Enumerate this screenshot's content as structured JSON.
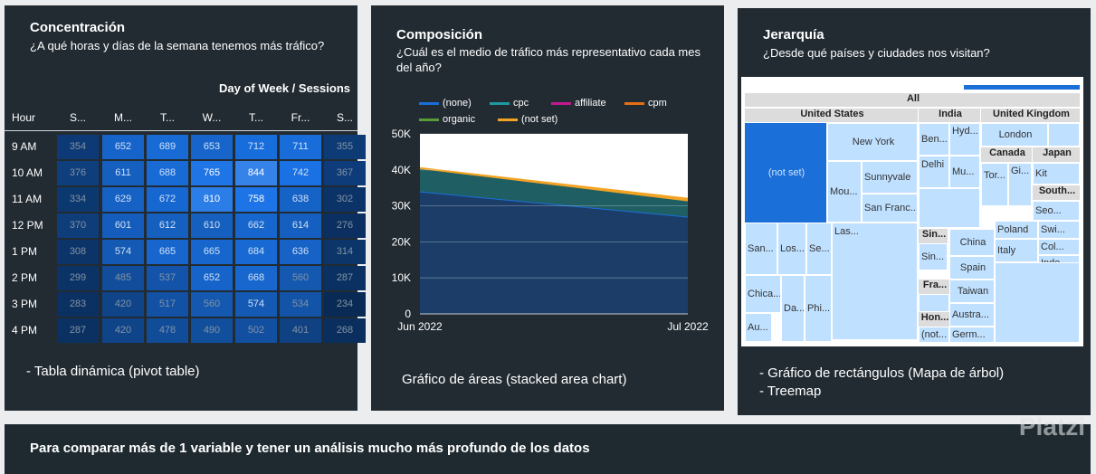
{
  "panel1": {
    "title": "Concentración",
    "subtitle": "¿A qué horas y días de la semana tenemos más tráfico?",
    "caption": "- Tabla dinámica (pivot table)",
    "pivot": {
      "header": "Day of Week / Sessions",
      "row_label": "Hour",
      "columns": [
        "S...",
        "M...",
        "T...",
        "W...",
        "T...",
        "Fr...",
        "S..."
      ],
      "rows": [
        {
          "hour": "9 AM",
          "values": [
            354,
            652,
            689,
            653,
            712,
            711,
            355
          ]
        },
        {
          "hour": "10 AM",
          "values": [
            376,
            611,
            688,
            765,
            844,
            742,
            367
          ]
        },
        {
          "hour": "11 AM",
          "values": [
            334,
            629,
            672,
            810,
            758,
            638,
            302
          ]
        },
        {
          "hour": "12 PM",
          "values": [
            370,
            601,
            612,
            610,
            662,
            614,
            276
          ]
        },
        {
          "hour": "1 PM",
          "values": [
            308,
            574,
            665,
            665,
            684,
            636,
            314
          ]
        },
        {
          "hour": "2 PM",
          "values": [
            299,
            485,
            537,
            652,
            668,
            560,
            287
          ]
        },
        {
          "hour": "3 PM",
          "values": [
            283,
            420,
            517,
            560,
            574,
            534,
            234
          ]
        },
        {
          "hour": "4 PM",
          "values": [
            287,
            420,
            478,
            490,
            502,
            401,
            268
          ]
        }
      ]
    }
  },
  "panel2": {
    "title": "Composición",
    "subtitle": "¿Cuál es el medio de tráfico más representativo cada mes del año?",
    "caption": "Gráfico de áreas (stacked area chart)"
  },
  "chart_data": {
    "type": "area",
    "title": "",
    "categories": [
      "Jun 2022",
      "Jul 2022"
    ],
    "series": [
      {
        "name": "(none)",
        "color": "#1a6fd8",
        "values": [
          34000,
          27000
        ]
      },
      {
        "name": "cpc",
        "color": "#1f9aa3",
        "values": [
          6500,
          4500
        ]
      },
      {
        "name": "affiliate",
        "color": "#c2188f",
        "values": [
          0,
          0
        ]
      },
      {
        "name": "cpm",
        "color": "#e56f13",
        "values": [
          0,
          0
        ]
      },
      {
        "name": "organic",
        "color": "#5a9a39",
        "values": [
          0,
          0
        ]
      },
      {
        "name": "(not set)",
        "color": "#f2a324",
        "values": [
          0,
          500
        ]
      }
    ],
    "yticks": [
      "0",
      "10K",
      "20K",
      "30K",
      "40K",
      "50K"
    ],
    "ylim": [
      0,
      50000
    ]
  },
  "panel3": {
    "title": "Jerarquía",
    "subtitle": "¿Desde qué países y ciudades nos visitan?",
    "caption1": "- Gráfico de rectángulos (Mapa de árbol)",
    "caption2": "- Treemap",
    "treemap": {
      "root": "All",
      "us": "United States",
      "in": "India",
      "uk": "United Kingdom",
      "notset": "(not set)",
      "ny": "New York",
      "sunny": "Sunnyvale",
      "mou": "Mou...",
      "sanfr": "San Franc...",
      "san": "San...",
      "los": "Los...",
      "se": "Se...",
      "las": "Las...",
      "chica": "Chica...",
      "au": "Au...",
      "da": "Da...",
      "phi": "Phi...",
      "ben": "Ben...",
      "hyd": "Hyd...",
      "mu": "Mu...",
      "delhi": "Delhi",
      "london": "London",
      "canada": "Canada",
      "japan": "Japan",
      "tor": "Tor...",
      "gi": "Gi...",
      "kit": "Kit",
      "south": "South...",
      "seo": "Seo...",
      "sin": "Sin...",
      "china": "China",
      "poland": "Poland",
      "italy": "Italy",
      "spain": "Spain",
      "fra": "Fra...",
      "taiwan": "Taiwan",
      "hon": "Hon...",
      "austra": "Austra...",
      "germ": "Germ...",
      "not2": "(not...",
      "indo": "Indo...",
      "col": "Col...",
      "swi": "Swi..."
    }
  },
  "bottom": {
    "text": "Para comparar más de 1 variable y tener un análisis mucho más profundo de los datos"
  },
  "watermark": "Platzi"
}
